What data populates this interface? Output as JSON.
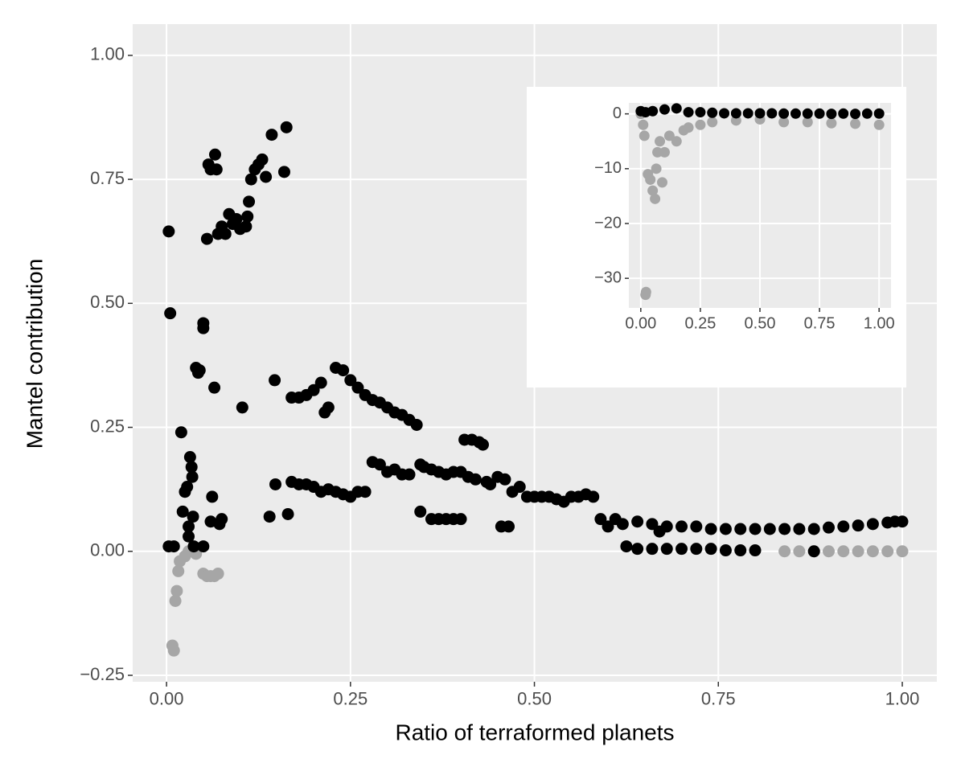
{
  "chart_data": [
    {
      "type": "scatter",
      "x_label": "Ratio of terraformed planets",
      "y_label": "Mantel contribution",
      "xlim": [
        -0.046,
        1.047
      ],
      "ylim": [
        -0.263,
        1.063
      ],
      "xticks": [
        {
          "value": 0,
          "label": "0.00"
        },
        {
          "value": 0.25,
          "label": "0.25"
        },
        {
          "value": 0.5,
          "label": "0.50"
        },
        {
          "value": 0.75,
          "label": "0.75"
        },
        {
          "value": 1,
          "label": "1.00"
        }
      ],
      "yticks": [
        {
          "value": -0.25,
          "label": "−0.25"
        },
        {
          "value": 0,
          "label": "0.00"
        },
        {
          "value": 0.25,
          "label": "0.25"
        },
        {
          "value": 0.5,
          "label": "0.50"
        },
        {
          "value": 0.75,
          "label": "0.75"
        },
        {
          "value": 1,
          "label": "1.00"
        }
      ],
      "grid": true,
      "series": [
        {
          "color": "#a6a6a6",
          "x": [
            0.008,
            0.01,
            0.012,
            0.014,
            0.016,
            0.018,
            0.025,
            0.03,
            0.035,
            0.04,
            0.05,
            0.055,
            0.06,
            0.065,
            0.07,
            0.84,
            0.86,
            0.88,
            0.9,
            0.92,
            0.94,
            0.96,
            0.98,
            1.0
          ],
          "values": [
            -0.19,
            -0.2,
            -0.1,
            -0.08,
            -0.04,
            -0.02,
            -0.01,
            0.0,
            0.0,
            -0.005,
            -0.045,
            -0.05,
            -0.05,
            -0.05,
            -0.045,
            0.0,
            0.0,
            0.0,
            0.0,
            0.0,
            0.0,
            0.0,
            0.0,
            0.0
          ]
        },
        {
          "color": "#000000",
          "x": [
            0.003,
            0.005,
            0.003,
            0.01,
            0.02,
            0.022,
            0.025,
            0.028,
            0.03,
            0.03,
            0.032,
            0.034,
            0.035,
            0.036,
            0.037,
            0.04,
            0.043,
            0.045,
            0.05,
            0.05,
            0.05,
            0.055,
            0.057,
            0.06,
            0.06,
            0.062,
            0.065,
            0.066,
            0.068,
            0.07,
            0.072,
            0.075,
            0.075,
            0.08,
            0.085,
            0.09,
            0.095,
            0.1,
            0.103,
            0.108,
            0.11,
            0.112,
            0.115,
            0.12,
            0.125,
            0.13,
            0.135,
            0.14,
            0.143,
            0.147,
            0.148,
            0.16,
            0.163,
            0.165,
            0.17,
            0.17,
            0.18,
            0.18,
            0.19,
            0.19,
            0.2,
            0.2,
            0.21,
            0.21,
            0.215,
            0.22,
            0.22,
            0.23,
            0.23,
            0.24,
            0.24,
            0.25,
            0.25,
            0.26,
            0.26,
            0.27,
            0.27,
            0.28,
            0.28,
            0.29,
            0.29,
            0.3,
            0.3,
            0.31,
            0.31,
            0.32,
            0.32,
            0.33,
            0.33,
            0.34,
            0.345,
            0.345,
            0.35,
            0.36,
            0.36,
            0.37,
            0.37,
            0.38,
            0.38,
            0.39,
            0.39,
            0.4,
            0.4,
            0.405,
            0.41,
            0.415,
            0.42,
            0.425,
            0.43,
            0.435,
            0.44,
            0.45,
            0.455,
            0.46,
            0.465,
            0.47,
            0.48,
            0.49,
            0.5,
            0.51,
            0.52,
            0.53,
            0.54,
            0.55,
            0.56,
            0.57,
            0.58,
            0.59,
            0.6,
            0.61,
            0.62,
            0.625,
            0.64,
            0.64,
            0.66,
            0.66,
            0.67,
            0.68,
            0.68,
            0.7,
            0.7,
            0.72,
            0.72,
            0.74,
            0.74,
            0.76,
            0.76,
            0.78,
            0.78,
            0.8,
            0.8,
            0.82,
            0.84,
            0.86,
            0.88,
            0.88,
            0.9,
            0.92,
            0.94,
            0.96,
            0.98,
            0.99,
            1.0
          ],
          "values": [
            0.645,
            0.48,
            0.01,
            0.01,
            0.24,
            0.08,
            0.12,
            0.13,
            0.05,
            0.03,
            0.19,
            0.17,
            0.15,
            0.07,
            0.01,
            0.37,
            0.36,
            0.365,
            0.46,
            0.45,
            0.01,
            0.63,
            0.78,
            0.77,
            0.06,
            0.11,
            0.33,
            0.8,
            0.77,
            0.64,
            0.055,
            0.655,
            0.065,
            0.64,
            0.68,
            0.66,
            0.67,
            0.65,
            0.29,
            0.655,
            0.675,
            0.705,
            0.75,
            0.77,
            0.78,
            0.79,
            0.755,
            0.07,
            0.84,
            0.345,
            0.135,
            0.765,
            0.855,
            0.075,
            0.31,
            0.14,
            0.31,
            0.135,
            0.315,
            0.135,
            0.325,
            0.13,
            0.34,
            0.12,
            0.28,
            0.29,
            0.125,
            0.37,
            0.12,
            0.365,
            0.115,
            0.345,
            0.11,
            0.33,
            0.12,
            0.315,
            0.12,
            0.18,
            0.305,
            0.3,
            0.175,
            0.29,
            0.16,
            0.28,
            0.165,
            0.275,
            0.155,
            0.265,
            0.155,
            0.255,
            0.175,
            0.08,
            0.17,
            0.165,
            0.065,
            0.16,
            0.065,
            0.155,
            0.065,
            0.16,
            0.065,
            0.16,
            0.065,
            0.225,
            0.15,
            0.225,
            0.145,
            0.22,
            0.215,
            0.14,
            0.135,
            0.15,
            0.05,
            0.145,
            0.05,
            0.12,
            0.13,
            0.11,
            0.11,
            0.11,
            0.11,
            0.105,
            0.1,
            0.11,
            0.11,
            0.115,
            0.11,
            0.065,
            0.05,
            0.065,
            0.055,
            0.01,
            0.06,
            0.005,
            0.055,
            0.005,
            0.04,
            0.05,
            0.005,
            0.05,
            0.005,
            0.05,
            0.005,
            0.045,
            0.005,
            0.045,
            0.002,
            0.045,
            0.002,
            0.045,
            0.002,
            0.045,
            0.045,
            0.045,
            0.045,
            0.0,
            0.048,
            0.05,
            0.052,
            0.055,
            0.058,
            0.06,
            0.06
          ]
        }
      ]
    },
    {
      "type": "scatter",
      "xlim": [
        -0.05,
        1.05
      ],
      "ylim": [
        -35.4,
        2
      ],
      "xticks": [
        {
          "value": 0,
          "label": "0.00"
        },
        {
          "value": 0.25,
          "label": "0.25"
        },
        {
          "value": 0.5,
          "label": "0.50"
        },
        {
          "value": 0.75,
          "label": "0.75"
        },
        {
          "value": 1,
          "label": "1.00"
        }
      ],
      "yticks": [
        {
          "value": -30,
          "label": "−30"
        },
        {
          "value": -20,
          "label": "−20"
        },
        {
          "value": -10,
          "label": "−10"
        },
        0
      ],
      "grid": true,
      "series": [
        {
          "color": "#a6a6a6",
          "x": [
            0.0,
            0.01,
            0.015,
            0.02,
            0.022,
            0.03,
            0.04,
            0.05,
            0.06,
            0.065,
            0.07,
            0.08,
            0.09,
            0.1,
            0.12,
            0.15,
            0.18,
            0.2,
            0.25,
            0.3,
            0.4,
            0.5,
            0.6,
            0.7,
            0.8,
            0.9,
            1.0
          ],
          "values": [
            0,
            -2,
            -4,
            -33,
            -32.5,
            -11,
            -12,
            -14,
            -15.5,
            -10,
            -7,
            -5,
            -12.5,
            -7,
            -4,
            -5,
            -3,
            -2.5,
            -2,
            -1.5,
            -1.2,
            -1,
            -1.5,
            -1.5,
            -1.7,
            -1.8,
            -2
          ]
        },
        {
          "color": "#000000",
          "x": [
            0,
            0.02,
            0.05,
            0.1,
            0.15,
            0.2,
            0.25,
            0.3,
            0.35,
            0.4,
            0.45,
            0.5,
            0.55,
            0.6,
            0.65,
            0.7,
            0.75,
            0.8,
            0.85,
            0.9,
            0.95,
            1.0
          ],
          "values": [
            0.5,
            0.3,
            0.5,
            0.8,
            1,
            0.3,
            0.3,
            0.2,
            0.1,
            0.1,
            0.1,
            0.1,
            0.1,
            0.05,
            0.05,
            0.05,
            0.05,
            0,
            0.05,
            0,
            0.05,
            0.06
          ]
        }
      ]
    }
  ]
}
